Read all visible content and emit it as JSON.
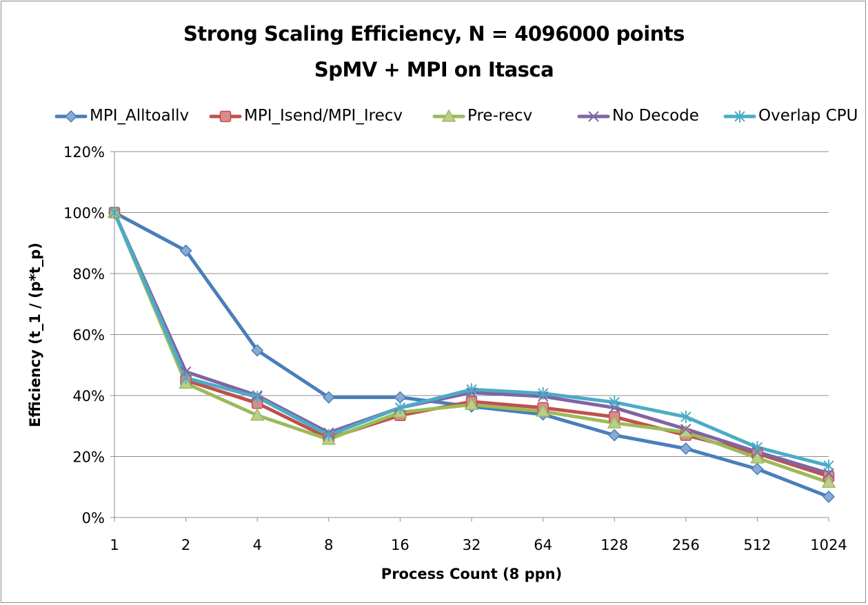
{
  "chart_data": {
    "type": "line",
    "title": "Strong Scaling Efficiency, N = 4096000 points",
    "subtitle": "SpMV + MPI on Itasca",
    "xlabel": "Process Count (8 ppn)",
    "ylabel": "Efficiency (t_1 / (p*t_p)",
    "categories": [
      "1",
      "2",
      "4",
      "8",
      "16",
      "32",
      "64",
      "128",
      "256",
      "512",
      "1024"
    ],
    "ylim": [
      0,
      120
    ],
    "yticks": [
      "0%",
      "20%",
      "40%",
      "60%",
      "80%",
      "100%",
      "120%"
    ],
    "grid": "horizontal",
    "legend_position": "top",
    "series": [
      {
        "name": "MPI_Alltoallv",
        "color": "#4a7ebb",
        "marker": "diamond",
        "values": [
          100,
          87.5,
          54.8,
          39.4,
          39.4,
          36.4,
          33.8,
          27.0,
          22.6,
          15.9,
          6.8
        ]
      },
      {
        "name": "MPI_Isend/MPI_Irecv",
        "color": "#c0504d",
        "marker": "square",
        "values": [
          100,
          45.0,
          37.5,
          26.0,
          33.5,
          38.0,
          36.0,
          33.0,
          27.0,
          21.0,
          13.5
        ]
      },
      {
        "name": "Pre-recv",
        "color": "#9bbb59",
        "marker": "triangle",
        "values": [
          100,
          44.0,
          33.5,
          25.6,
          34.5,
          37.0,
          34.8,
          31.0,
          28.0,
          19.5,
          11.5
        ]
      },
      {
        "name": "No Decode",
        "color": "#8064a2",
        "marker": "x",
        "values": [
          100,
          47.8,
          40.0,
          27.8,
          36.0,
          41.0,
          39.7,
          36.0,
          29.0,
          21.5,
          14.5
        ]
      },
      {
        "name": "Overlap CPU",
        "color": "#4bacc6",
        "marker": "star",
        "values": [
          100,
          45.8,
          39.5,
          27.0,
          36.0,
          42.0,
          40.7,
          37.8,
          33.0,
          23.0,
          17.0
        ]
      }
    ]
  }
}
